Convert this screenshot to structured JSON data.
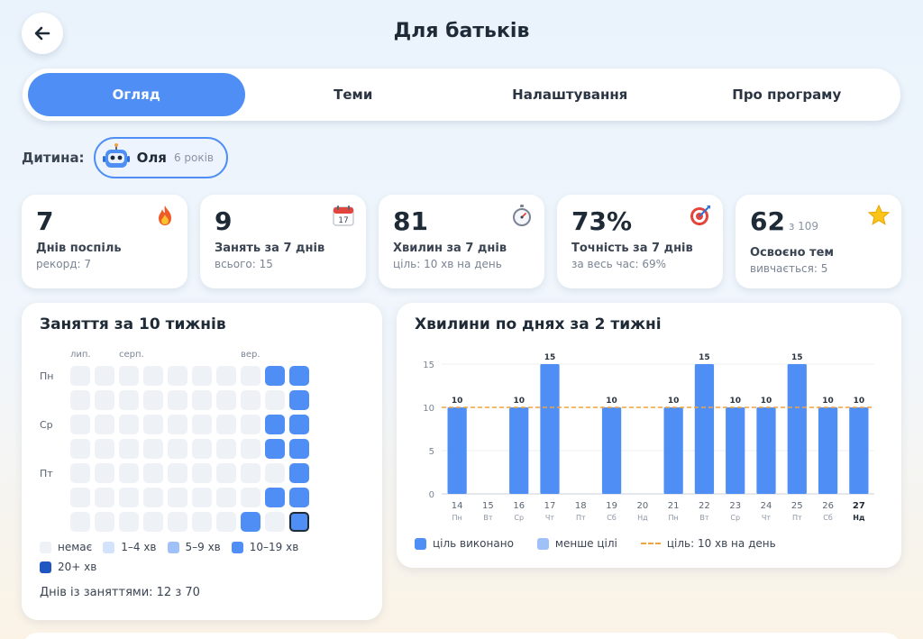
{
  "header": {
    "title": "Для батьків",
    "back_icon": "arrow-left-icon"
  },
  "tabs": [
    {
      "label": "Огляд",
      "active": true
    },
    {
      "label": "Теми",
      "active": false
    },
    {
      "label": "Налаштування",
      "active": false
    },
    {
      "label": "Про програму",
      "active": false
    }
  ],
  "child": {
    "label": "Дитина:",
    "name": "Оля",
    "age": "6 років",
    "avatar_icon": "robot-icon"
  },
  "stats": [
    {
      "value": "7",
      "label": "Днів поспіль",
      "sub": "рекорд: 7",
      "icon": "fire-icon"
    },
    {
      "value": "9",
      "label": "Занять за 7 днів",
      "sub": "всього: 15",
      "icon": "calendar-icon"
    },
    {
      "value": "81",
      "label": "Хвилин за 7 днів",
      "sub": "ціль: 10 хв на день",
      "icon": "stopwatch-icon"
    },
    {
      "value": "73%",
      "label": "Точність за 7 днів",
      "sub": "за весь час: 69%",
      "icon": "target-icon"
    },
    {
      "value": "62",
      "of": "з 109",
      "label": "Освоєно тем",
      "sub": "вивчається: 5",
      "icon": "star-icon"
    }
  ],
  "heatmap": {
    "title": "Заняття за 10 тижнів",
    "months": [
      {
        "label": "лип.",
        "week": 0
      },
      {
        "label": "серп.",
        "week": 2
      },
      {
        "label": "вер.",
        "week": 7
      }
    ],
    "day_labels": [
      {
        "label": "Пн",
        "row": 0
      },
      {
        "label": "Ср",
        "row": 2
      },
      {
        "label": "Пт",
        "row": 4
      }
    ],
    "levels": [
      [
        0,
        0,
        0,
        0,
        0,
        0,
        0,
        0,
        3,
        3
      ],
      [
        0,
        0,
        0,
        0,
        0,
        0,
        0,
        0,
        0,
        3
      ],
      [
        0,
        0,
        0,
        0,
        0,
        0,
        0,
        0,
        3,
        3
      ],
      [
        0,
        0,
        0,
        0,
        0,
        0,
        0,
        0,
        3,
        3
      ],
      [
        0,
        0,
        0,
        0,
        0,
        0,
        0,
        0,
        0,
        3
      ],
      [
        0,
        0,
        0,
        0,
        0,
        0,
        0,
        0,
        3,
        3
      ],
      [
        0,
        0,
        0,
        0,
        0,
        0,
        0,
        3,
        0,
        3
      ]
    ],
    "today": {
      "row": 6,
      "week": 9
    },
    "colors": [
      "#eef1f6",
      "#d3e3fb",
      "#9fc1f7",
      "#4f8ff5",
      "#1f56c2"
    ],
    "legend": [
      {
        "label": "немає",
        "level": 0
      },
      {
        "label": "1–4 хв",
        "level": 1
      },
      {
        "label": "5–9 хв",
        "level": 2
      },
      {
        "label": "10–19 хв",
        "level": 3
      },
      {
        "label": "20+ хв",
        "level": 4
      }
    ],
    "summary": "Днів із заняттями: 12 з 70"
  },
  "chart_data": {
    "type": "bar",
    "title": "Хвилини по днях за 2 тижні",
    "categories": [
      "14",
      "15",
      "16",
      "17",
      "18",
      "19",
      "20",
      "21",
      "22",
      "23",
      "24",
      "25",
      "26",
      "27"
    ],
    "weekdays": [
      "Пн",
      "Вт",
      "Ср",
      "Чт",
      "Пт",
      "Сб",
      "Нд",
      "Пн",
      "Вт",
      "Ср",
      "Чт",
      "Пт",
      "Сб",
      "Нд"
    ],
    "values": [
      10,
      0,
      10,
      15,
      0,
      10,
      0,
      10,
      15,
      10,
      10,
      15,
      10,
      10
    ],
    "goal": 10,
    "ylim": [
      0,
      15
    ],
    "yticks": [
      0,
      5,
      10,
      15
    ],
    "highlight_index": 13,
    "colors": {
      "met": "#4f8ff5",
      "below": "#9fc1f7",
      "goal": "#f0a33c"
    },
    "legend": [
      {
        "label": "ціль виконано",
        "kind": "met"
      },
      {
        "label": "менше цілі",
        "kind": "below"
      },
      {
        "label": "ціль: 10 хв на день",
        "kind": "goal"
      }
    ]
  }
}
